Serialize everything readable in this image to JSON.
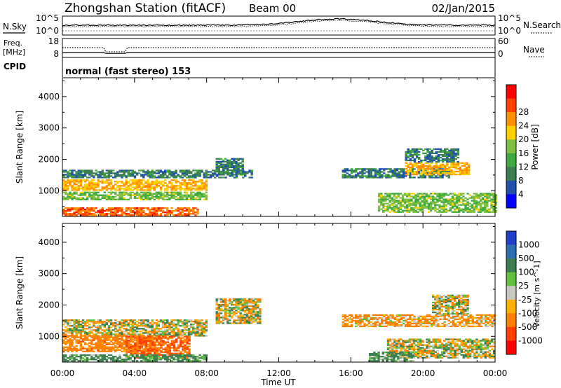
{
  "header": {
    "station": "Zhongshan Station (fitACF)",
    "beam": "Beam 00",
    "date": "02/Jan/2015",
    "mode": "normal (fast stereo) 153"
  },
  "noise_panel": {
    "left_label": "N.Sky",
    "right_label": "N.Search",
    "left_ticks": [
      "10^5",
      "10^0"
    ],
    "right_ticks": [
      "10^5",
      "10^0"
    ]
  },
  "freq_panel": {
    "left_label_1": "Freq.",
    "left_label_2": "[MHz]",
    "right_label": "Nave",
    "left_ticks": [
      "18",
      "8"
    ],
    "right_ticks": [
      "60",
      "0"
    ]
  },
  "cpid_label": "CPID",
  "xaxis": {
    "label": "Time UT",
    "ticks": [
      "00:00",
      "04:00",
      "08:00",
      "12:00",
      "16:00",
      "20:00",
      "00:00"
    ]
  },
  "yaxis": {
    "label": "Slant Range [km]",
    "ticks": [
      "1000",
      "2000",
      "3000",
      "4000"
    ]
  },
  "power_bar": {
    "title": "Power [dB]",
    "ticks": [
      "4",
      "8",
      "12",
      "16",
      "20",
      "24",
      "28"
    ],
    "colors": [
      "#0000ff",
      "#2050b0",
      "#3c7f50",
      "#3faa3f",
      "#80c040",
      "#ffd000",
      "#ff9000",
      "#ff4000",
      "#ff0000"
    ]
  },
  "velocity_bar": {
    "title": "Velocity [m s^-1]",
    "ticks": [
      "1000",
      "500",
      "100",
      "25",
      "-25",
      "-100",
      "-500",
      "-1000"
    ],
    "colors": [
      "#2040c8",
      "#2f6fb0",
      "#3c7f50",
      "#60c040",
      "#c8c8c0",
      "#ffb000",
      "#ff8000",
      "#ff4000",
      "#ff0000"
    ]
  },
  "chart_data": [
    {
      "type": "heatmap",
      "title": "Power [dB]",
      "xlabel": "Time UT",
      "ylabel": "Slant Range [km]",
      "xlim": [
        0,
        24
      ],
      "ylim": [
        180,
        4600
      ],
      "zlim": [
        0,
        30
      ],
      "regions": [
        {
          "t": [
            0.0,
            10.5
          ],
          "r": [
            1400,
            1650
          ],
          "value": 8
        },
        {
          "t": [
            0.0,
            8.0
          ],
          "r": [
            1000,
            1350
          ],
          "value": 20
        },
        {
          "t": [
            0.0,
            8.0
          ],
          "r": [
            700,
            950
          ],
          "value": 14
        },
        {
          "t": [
            0.0,
            7.5
          ],
          "r": [
            200,
            450
          ],
          "value": 24
        },
        {
          "t": [
            8.5,
            10.0
          ],
          "r": [
            1500,
            2000
          ],
          "value": 8
        },
        {
          "t": [
            15.5,
            21.5
          ],
          "r": [
            1400,
            1700
          ],
          "value": 8
        },
        {
          "t": [
            19.0,
            22.5
          ],
          "r": [
            1500,
            1900
          ],
          "value": 20
        },
        {
          "t": [
            17.5,
            24.0
          ],
          "r": [
            300,
            900
          ],
          "value": 14
        },
        {
          "t": [
            19.0,
            22.0
          ],
          "r": [
            1900,
            2350
          ],
          "value": 8
        }
      ]
    },
    {
      "type": "heatmap",
      "title": "Velocity [m s^-1]",
      "xlabel": "Time UT",
      "ylabel": "Slant Range [km]",
      "xlim": [
        0,
        24
      ],
      "ylim": [
        180,
        4600
      ],
      "zlim": [
        -1000,
        1000
      ],
      "regions": [
        {
          "t": [
            0.0,
            8.0
          ],
          "r": [
            1000,
            1500
          ],
          "value": 0
        },
        {
          "t": [
            0.0,
            5.0
          ],
          "r": [
            500,
            1000
          ],
          "value": -300
        },
        {
          "t": [
            3.5,
            7.0
          ],
          "r": [
            300,
            1000
          ],
          "value": -500
        },
        {
          "t": [
            0.0,
            8.0
          ],
          "r": [
            200,
            400
          ],
          "value": 200
        },
        {
          "t": [
            8.5,
            11.0
          ],
          "r": [
            1400,
            2200
          ],
          "value": 0
        },
        {
          "t": [
            15.5,
            24.0
          ],
          "r": [
            1300,
            1700
          ],
          "value": -150
        },
        {
          "t": [
            18.0,
            24.0
          ],
          "r": [
            300,
            900
          ],
          "value": 0
        },
        {
          "t": [
            17.0,
            19.5
          ],
          "r": [
            200,
            500
          ],
          "value": 200
        },
        {
          "t": [
            20.5,
            22.5
          ],
          "r": [
            1700,
            2300
          ],
          "value": 0
        }
      ]
    }
  ]
}
